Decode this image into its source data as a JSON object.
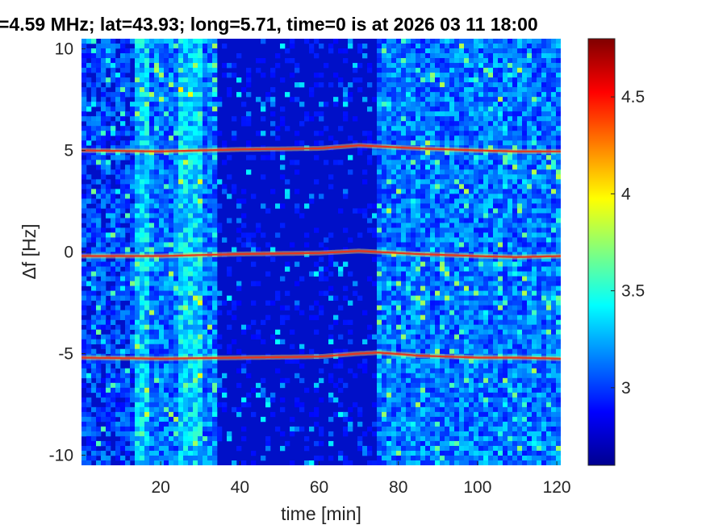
{
  "chart_data": {
    "type": "heatmap",
    "title": "=4.59 MHz;  lat=43.93; long=5.71, time=0 is at 2026 03 11 18:00",
    "xlabel": "time [min]",
    "ylabel": "Δf [Hz]",
    "xlim": [
      0,
      121
    ],
    "ylim": [
      -10.5,
      10.5
    ],
    "xticks": [
      "20",
      "40",
      "60",
      "80",
      "100",
      "120"
    ],
    "yticks": [
      "10",
      "5",
      "0",
      "-5",
      "-10"
    ],
    "colorbar": {
      "range": [
        2.6,
        4.8
      ],
      "ticks": [
        "4.5",
        "4",
        "3.5",
        "3"
      ],
      "colormap": "jet"
    },
    "tone_lines": [
      {
        "label": "+5 Hz",
        "time": [
          0,
          20,
          40,
          60,
          70,
          75,
          85,
          100,
          110,
          121
        ],
        "df": [
          5.0,
          4.95,
          5.05,
          5.1,
          5.25,
          5.2,
          5.1,
          5.0,
          4.95,
          4.95
        ]
      },
      {
        "label": "0 Hz",
        "time": [
          0,
          20,
          40,
          60,
          70,
          75,
          85,
          100,
          110,
          121
        ],
        "df": [
          -0.2,
          -0.2,
          -0.1,
          -0.05,
          0.05,
          0.0,
          -0.1,
          -0.2,
          -0.25,
          -0.2
        ]
      },
      {
        "label": "-5 Hz",
        "time": [
          0,
          20,
          40,
          60,
          70,
          75,
          85,
          100,
          110,
          121
        ],
        "df": [
          -5.2,
          -5.25,
          -5.2,
          -5.15,
          -5.0,
          -4.95,
          -5.1,
          -5.2,
          -5.2,
          -5.25
        ]
      }
    ],
    "bright_time_bands": [
      [
        13,
        34
      ],
      [
        75,
        121
      ]
    ],
    "quiet_time_band": [
      34,
      75
    ]
  }
}
